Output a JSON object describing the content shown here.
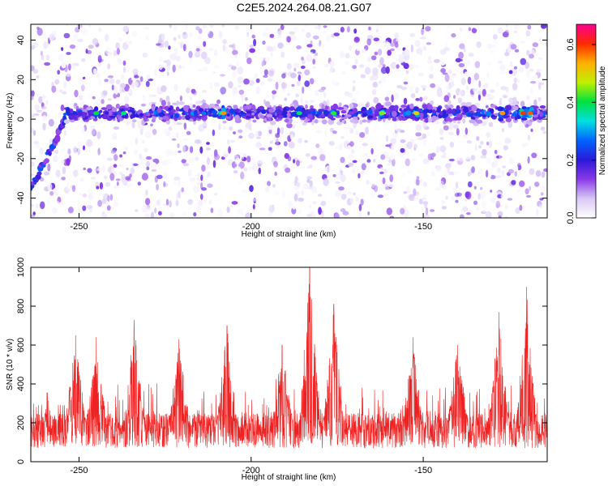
{
  "title": "C2E5.2024.264.08.21.G07",
  "colors": {
    "snr_line": "#ee2222",
    "axis": "#000000",
    "colormap": [
      "#ffffff",
      "#d8c8f5",
      "#8a3ae8",
      "#2a1ad8",
      "#0064ff",
      "#00e0e0",
      "#00e040",
      "#c0f000",
      "#ffb000",
      "#ff2a00",
      "#ff0090"
    ]
  },
  "chart_data": [
    {
      "type": "heatmap",
      "title": "C2E5.2024.264.08.21.G07",
      "xlabel": "Height of straight line (km)",
      "ylabel": "Frequency (Hz)",
      "xlim": [
        -264,
        -114
      ],
      "ylim": [
        -50,
        48
      ],
      "x_ticks": [
        -250,
        -200,
        -150
      ],
      "y_ticks": [
        -40,
        -20,
        0,
        20,
        40
      ],
      "colorbar": {
        "label": "Normalized spectral amplitude",
        "range": [
          0.0,
          0.67
        ],
        "ticks": [
          "0.0",
          "0.2",
          "0.4",
          "0.6"
        ],
        "tick_values": [
          0.0,
          0.2,
          0.4,
          0.6
        ]
      },
      "main_band_frequency": 3,
      "onset": {
        "x": [
          -264,
          -258,
          -254
        ],
        "y": [
          -35,
          -15,
          0
        ]
      },
      "band_peaks": [
        {
          "x": -245,
          "value": 0.4
        },
        {
          "x": -237,
          "value": 0.38
        },
        {
          "x": -208,
          "value": 0.55
        },
        {
          "x": -186,
          "value": 0.38
        },
        {
          "x": -176,
          "value": 0.42
        },
        {
          "x": -162,
          "value": 0.45
        },
        {
          "x": -152,
          "value": 0.5
        },
        {
          "x": -127,
          "value": 0.55
        },
        {
          "x": -121,
          "value": 0.6
        },
        {
          "x": -119,
          "value": 0.58
        }
      ]
    },
    {
      "type": "line",
      "xlabel": "Height of straight line (km)",
      "ylabel": "SNR (10 * v/v)",
      "xlim": [
        -264,
        -114
      ],
      "ylim": [
        0,
        1000
      ],
      "x_ticks": [
        -250,
        -200,
        -150
      ],
      "y_ticks": [
        0,
        200,
        400,
        600,
        800,
        1000
      ],
      "baseline": 200,
      "peaks": [
        {
          "x": -251,
          "y": 650
        },
        {
          "x": -245,
          "y": 640
        },
        {
          "x": -234,
          "y": 730
        },
        {
          "x": -221,
          "y": 630
        },
        {
          "x": -207,
          "y": 700
        },
        {
          "x": -191,
          "y": 600
        },
        {
          "x": -183,
          "y": 1000
        },
        {
          "x": -176,
          "y": 810
        },
        {
          "x": -153,
          "y": 640
        },
        {
          "x": -140,
          "y": 600
        },
        {
          "x": -128,
          "y": 770
        },
        {
          "x": -120,
          "y": 900
        }
      ]
    }
  ]
}
